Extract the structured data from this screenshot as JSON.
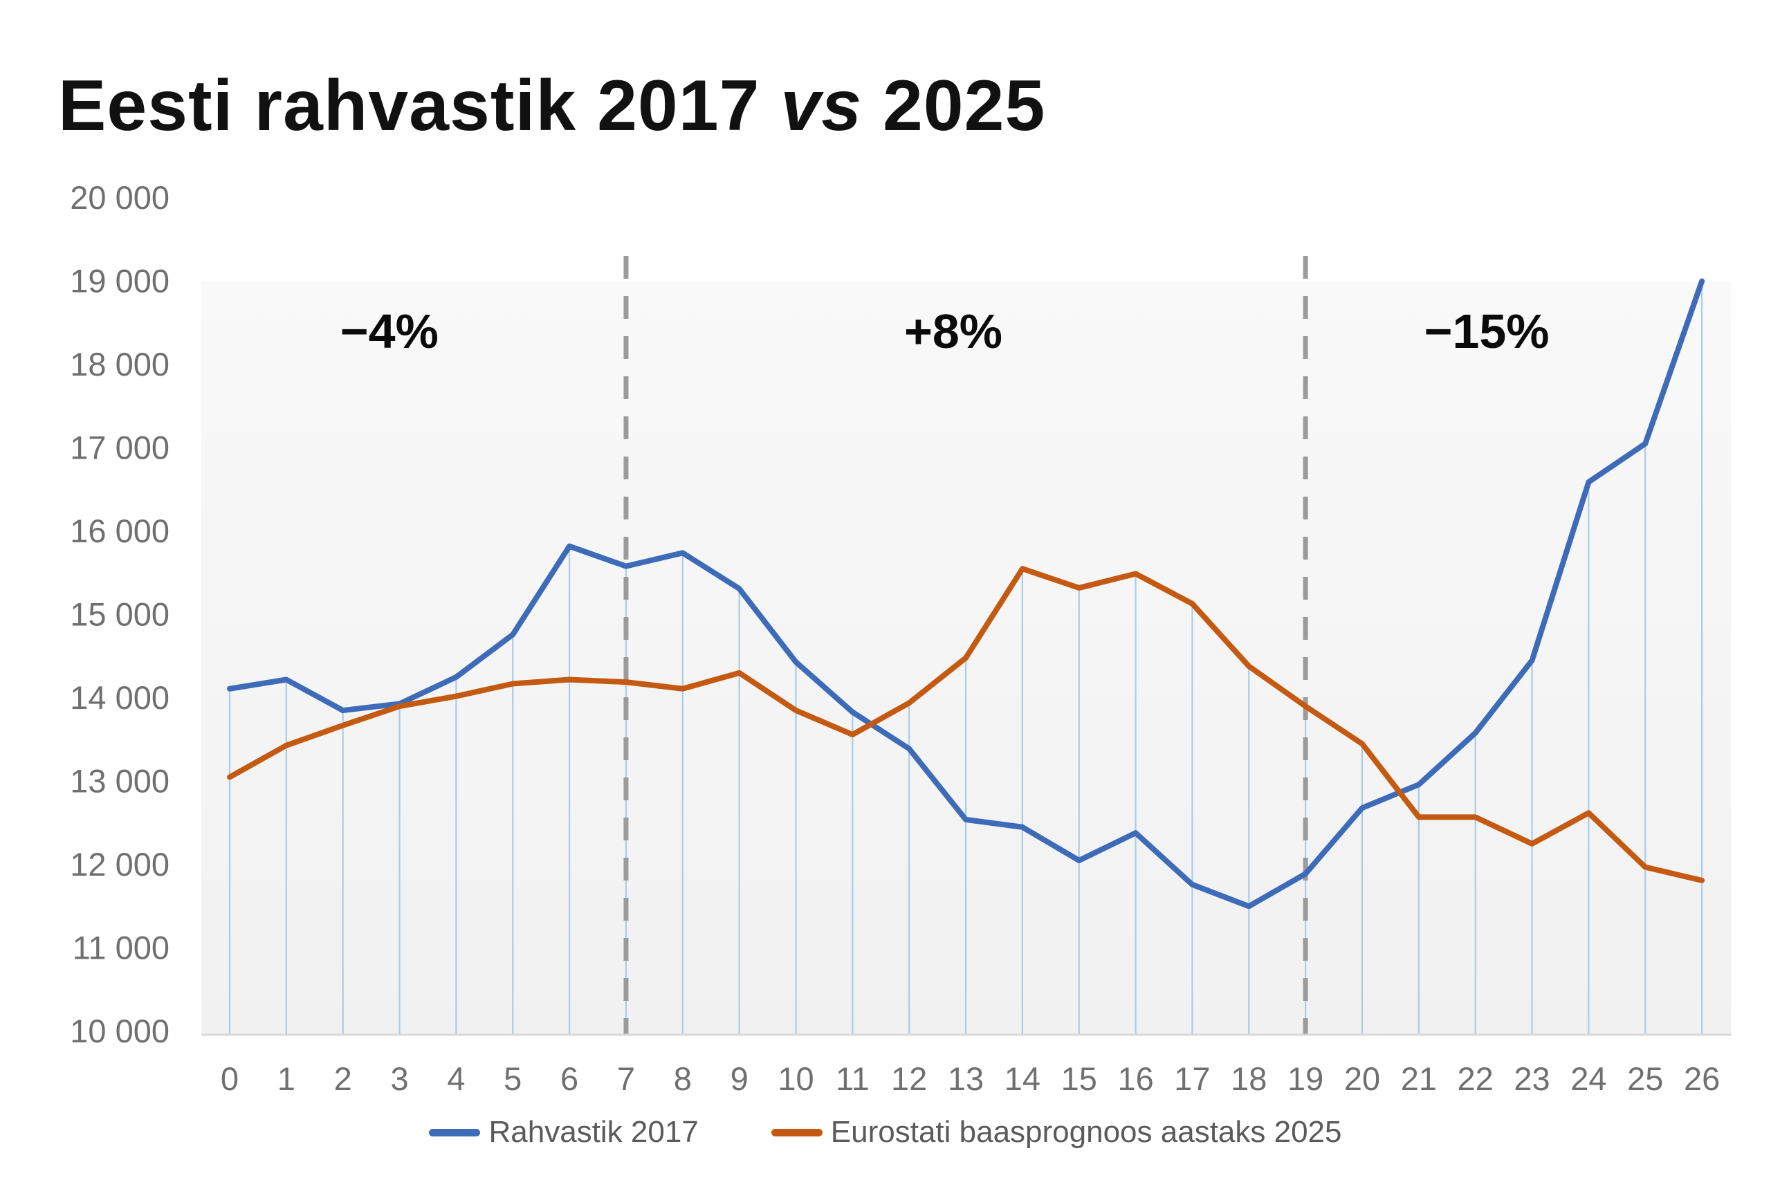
{
  "title": {
    "prefix": "Eesti rahvastik 2017",
    "middle": "vs",
    "suffix": "2025"
  },
  "chart_data": {
    "type": "line",
    "x": [
      "0",
      "1",
      "2",
      "3",
      "4",
      "5",
      "6",
      "7",
      "8",
      "9",
      "10",
      "11",
      "12",
      "13",
      "14",
      "15",
      "16",
      "17",
      "18",
      "19",
      "20",
      "21",
      "22",
      "23",
      "24",
      "25",
      "26"
    ],
    "xlabel": "",
    "ylabel": "",
    "ylim": [
      10000,
      20000
    ],
    "grid": "off",
    "legend_position": "bottom",
    "drop_lines": true,
    "y_ticks": [
      {
        "value": 20000,
        "label": "20 000"
      },
      {
        "value": 19000,
        "label": "19 000"
      },
      {
        "value": 18000,
        "label": "18 000"
      },
      {
        "value": 17000,
        "label": "17 000"
      },
      {
        "value": 16000,
        "label": "16 000"
      },
      {
        "value": 15000,
        "label": "15 000"
      },
      {
        "value": 14000,
        "label": "14 000"
      },
      {
        "value": 13000,
        "label": "13 000"
      },
      {
        "value": 12000,
        "label": "12 000"
      },
      {
        "value": 11000,
        "label": "11 000"
      },
      {
        "value": 10000,
        "label": "10 000"
      }
    ],
    "series": [
      {
        "name": "Rahvastik 2017",
        "color": "#3D6BB8",
        "values": [
          14110,
          14220,
          13850,
          13930,
          14250,
          14760,
          15820,
          15580,
          15740,
          15310,
          14430,
          13830,
          13390,
          12540,
          12450,
          12050,
          12380,
          11760,
          11500,
          11890,
          12680,
          12960,
          13580,
          14450,
          16590,
          17050,
          19000
        ]
      },
      {
        "name": "Eurostati baasprognoos aastaks 2025",
        "color": "#C45A11",
        "values": [
          13050,
          13430,
          13670,
          13900,
          14020,
          14170,
          14220,
          14190,
          14110,
          14300,
          13850,
          13560,
          13940,
          14480,
          15550,
          15320,
          15490,
          15130,
          14380,
          13900,
          13450,
          12570,
          12570,
          12250,
          12620,
          11970,
          11810
        ]
      }
    ],
    "annotations": [
      {
        "label": "−4%",
        "from_x": 0,
        "to_x": 7
      },
      {
        "label": "+8%",
        "from_x": 7,
        "to_x": 19
      },
      {
        "label": "−15%",
        "from_x": 19,
        "to_x": 26
      }
    ],
    "dividers": [
      7,
      19
    ]
  },
  "colors": {
    "drop_line": "#A9CCEA",
    "divider": "#9B9B9B",
    "axis_line": "#D8D8D8",
    "tick_text": "#6F6F6F",
    "legend_text": "#5A5A5A",
    "annotation_text": "#0A0A0A",
    "plot_bg_top": "#F9F9F9",
    "plot_bg_bottom": "#F1F1F1",
    "title_text": "#111111"
  }
}
